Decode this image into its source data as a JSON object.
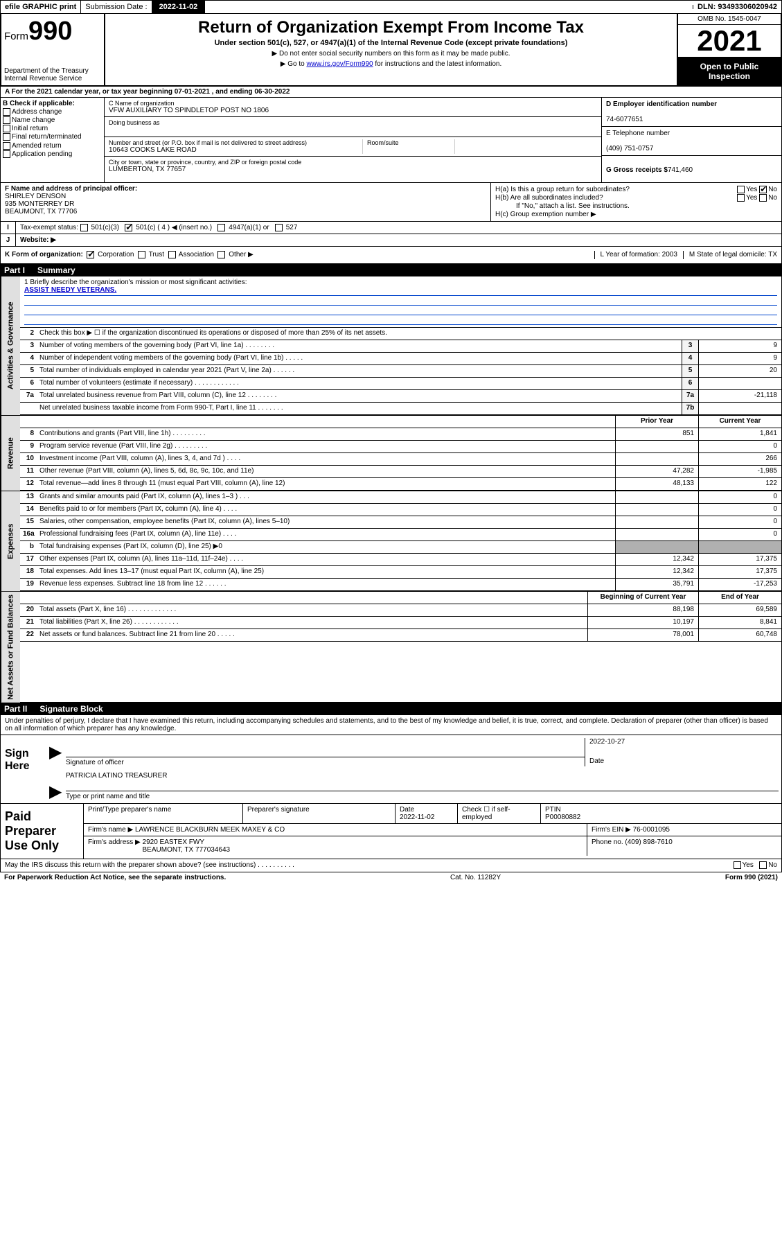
{
  "top": {
    "efile": "efile GRAPHIC print",
    "subdate_label": "Submission Date :",
    "subdate": "2022-11-02",
    "dln": "DLN: 93493306020942"
  },
  "header": {
    "form_word": "Form",
    "form_num": "990",
    "dept": "Department of the Treasury\nInternal Revenue Service",
    "title": "Return of Organization Exempt From Income Tax",
    "sub": "Under section 501(c), 527, or 4947(a)(1) of the Internal Revenue Code (except private foundations)",
    "note1": "▶ Do not enter social security numbers on this form as it may be made public.",
    "note2_pre": "▶ Go to ",
    "note2_link": "www.irs.gov/Form990",
    "note2_post": " for instructions and the latest information.",
    "omb": "OMB No. 1545-0047",
    "year": "2021",
    "open": "Open to Public Inspection"
  },
  "rowA": "A For the 2021 calendar year, or tax year beginning 07-01-2021   , and ending 06-30-2022",
  "colB": {
    "title": "B Check if applicable:",
    "items": [
      "Address change",
      "Name change",
      "Initial return",
      "Final return/terminated",
      "Amended return",
      "Application pending"
    ]
  },
  "colC": {
    "name_label": "C Name of organization",
    "name": "VFW AUXILIARY TO SPINDLETOP POST NO 1806",
    "dba_label": "Doing business as",
    "addr_label": "Number and street (or P.O. box if mail is not delivered to street address)",
    "room_label": "Room/suite",
    "addr": "10643 COOKS LAKE ROAD",
    "city_label": "City or town, state or province, country, and ZIP or foreign postal code",
    "city": "LUMBERTON, TX  77657"
  },
  "colDG": {
    "d_label": "D Employer identification number",
    "d_val": "74-6077651",
    "e_label": "E Telephone number",
    "e_val": "(409) 751-0757",
    "g_label": "G Gross receipts $",
    "g_val": "741,460"
  },
  "colF": {
    "label": "F Name and address of principal officer:",
    "name": "SHIRLEY DENSON",
    "addr1": "935 MONTERREY DR",
    "addr2": "BEAUMONT, TX  77706"
  },
  "colH": {
    "ha": "H(a)  Is this a group return for subordinates?",
    "hb": "H(b)  Are all subordinates included?",
    "hb_note": "If \"No,\" attach a list. See instructions.",
    "hc": "H(c)  Group exemption number ▶",
    "yes": "Yes",
    "no": "No"
  },
  "rowI": {
    "label": "Tax-exempt status:",
    "o1": "501(c)(3)",
    "o2": "501(c) ( 4 ) ◀ (insert no.)",
    "o3": "4947(a)(1) or",
    "o4": "527"
  },
  "rowJ": {
    "lab": "J",
    "text": "Website: ▶"
  },
  "rowK": {
    "text": "K Form of organization:",
    "o1": "Corporation",
    "o2": "Trust",
    "o3": "Association",
    "o4": "Other ▶",
    "l": "L Year of formation: 2003",
    "m": "M State of legal domicile: TX"
  },
  "partI": {
    "num": "Part I",
    "title": "Summary"
  },
  "mission": {
    "q": "1  Briefly describe the organization's mission or most significant activities:",
    "line": "ASSIST NEEDY VETERANS."
  },
  "sideLabels": {
    "s1": "Activities & Governance",
    "s2": "Revenue",
    "s3": "Expenses",
    "s4": "Net Assets or Fund Balances"
  },
  "lines_gov": [
    {
      "n": "2",
      "d": "Check this box ▶ ☐  if the organization discontinued its operations or disposed of more than 25% of its net assets."
    },
    {
      "n": "3",
      "d": "Number of voting members of the governing body (Part VI, line 1a)   .   .   .   .   .   .   .   .",
      "box": "3",
      "cur": "9"
    },
    {
      "n": "4",
      "d": "Number of independent voting members of the governing body (Part VI, line 1b)   .   .   .   .   .",
      "box": "4",
      "cur": "9"
    },
    {
      "n": "5",
      "d": "Total number of individuals employed in calendar year 2021 (Part V, line 2a)   .   .   .   .   .   .",
      "box": "5",
      "cur": "20"
    },
    {
      "n": "6",
      "d": "Total number of volunteers (estimate if necessary)   .   .   .   .   .   .   .   .   .   .   .   .",
      "box": "6",
      "cur": ""
    },
    {
      "n": "7a",
      "d": "Total unrelated business revenue from Part VIII, column (C), line 12   .   .   .   .   .   .   .   .",
      "box": "7a",
      "cur": "-21,118"
    },
    {
      "n": "",
      "d": "Net unrelated business taxable income from Form 990-T, Part I, line 11   .   .   .   .   .   .   .",
      "box": "7b",
      "cur": ""
    }
  ],
  "col_hdr": {
    "prior": "Prior Year",
    "current": "Current Year"
  },
  "lines_rev": [
    {
      "n": "8",
      "d": "Contributions and grants (Part VIII, line 1h)   .   .   .   .   .   .   .   .   .",
      "p": "851",
      "c": "1,841"
    },
    {
      "n": "9",
      "d": "Program service revenue (Part VIII, line 2g)   .   .   .   .   .   .   .   .   .",
      "p": "",
      "c": "0"
    },
    {
      "n": "10",
      "d": "Investment income (Part VIII, column (A), lines 3, 4, and 7d )   .   .   .   .",
      "p": "",
      "c": "266"
    },
    {
      "n": "11",
      "d": "Other revenue (Part VIII, column (A), lines 5, 6d, 8c, 9c, 10c, and 11e)",
      "p": "47,282",
      "c": "-1,985"
    },
    {
      "n": "12",
      "d": "Total revenue—add lines 8 through 11 (must equal Part VIII, column (A), line 12)",
      "p": "48,133",
      "c": "122"
    }
  ],
  "lines_exp": [
    {
      "n": "13",
      "d": "Grants and similar amounts paid (Part IX, column (A), lines 1–3 )   .   .   .",
      "p": "",
      "c": "0"
    },
    {
      "n": "14",
      "d": "Benefits paid to or for members (Part IX, column (A), line 4)   .   .   .   .",
      "p": "",
      "c": "0"
    },
    {
      "n": "15",
      "d": "Salaries, other compensation, employee benefits (Part IX, column (A), lines 5–10)",
      "p": "",
      "c": "0"
    },
    {
      "n": "16a",
      "d": "Professional fundraising fees (Part IX, column (A), line 11e)   .   .   .   .",
      "p": "",
      "c": "0"
    },
    {
      "n": "b",
      "d": "Total fundraising expenses (Part IX, column (D), line 25) ▶0",
      "grey": true
    },
    {
      "n": "17",
      "d": "Other expenses (Part IX, column (A), lines 11a–11d, 11f–24e)   .   .   .   .",
      "p": "12,342",
      "c": "17,375"
    },
    {
      "n": "18",
      "d": "Total expenses. Add lines 13–17 (must equal Part IX, column (A), line 25)",
      "p": "12,342",
      "c": "17,375"
    },
    {
      "n": "19",
      "d": "Revenue less expenses. Subtract line 18 from line 12   .   .   .   .   .   .",
      "p": "35,791",
      "c": "-17,253"
    }
  ],
  "col_hdr2": {
    "prior": "Beginning of Current Year",
    "current": "End of Year"
  },
  "lines_net": [
    {
      "n": "20",
      "d": "Total assets (Part X, line 16)   .   .   .   .   .   .   .   .   .   .   .   .   .",
      "p": "88,198",
      "c": "69,589"
    },
    {
      "n": "21",
      "d": "Total liabilities (Part X, line 26)   .   .   .   .   .   .   .   .   .   .   .   .",
      "p": "10,197",
      "c": "8,841"
    },
    {
      "n": "22",
      "d": "Net assets or fund balances. Subtract line 21 from line 20   .   .   .   .   .",
      "p": "78,001",
      "c": "60,748"
    }
  ],
  "partII": {
    "num": "Part II",
    "title": "Signature Block"
  },
  "sig_intro": "Under penalties of perjury, I declare that I have examined this return, including accompanying schedules and statements, and to the best of my knowledge and belief, it is true, correct, and complete. Declaration of preparer (other than officer) is based on all information of which preparer has any knowledge.",
  "sign": {
    "lab": "Sign Here",
    "sig_of_officer": "Signature of officer",
    "date_lab": "Date",
    "date": "2022-10-27",
    "name": "PATRICIA LATINO  TREASURER",
    "name_lab": "Type or print name and title"
  },
  "paid": {
    "lab": "Paid Preparer Use Only",
    "r1": {
      "c1": "Print/Type preparer's name",
      "c2": "Preparer's signature",
      "c3_lab": "Date",
      "c3": "2022-11-02",
      "c4_lab": "Check ☐ if self-employed",
      "c5_lab": "PTIN",
      "c5": "P00080882"
    },
    "r2": {
      "c1_lab": "Firm's name    ▶",
      "c1": "LAWRENCE BLACKBURN MEEK MAXEY & CO",
      "c2_lab": "Firm's EIN ▶",
      "c2": "76-0001095"
    },
    "r3": {
      "c1_lab": "Firm's address ▶",
      "c1a": "2920 EASTEX FWY",
      "c1b": "BEAUMONT, TX  777034643",
      "c2_lab": "Phone no.",
      "c2": "(409) 898-7610"
    }
  },
  "irs_discuss": {
    "q": "May the IRS discuss this return with the preparer shown above? (see instructions)   .   .   .   .   .   .   .   .   .   .",
    "yes": "Yes",
    "no": "No"
  },
  "footer": {
    "l": "For Paperwork Reduction Act Notice, see the separate instructions.",
    "m": "Cat. No. 11282Y",
    "r": "Form 990 (2021)"
  }
}
